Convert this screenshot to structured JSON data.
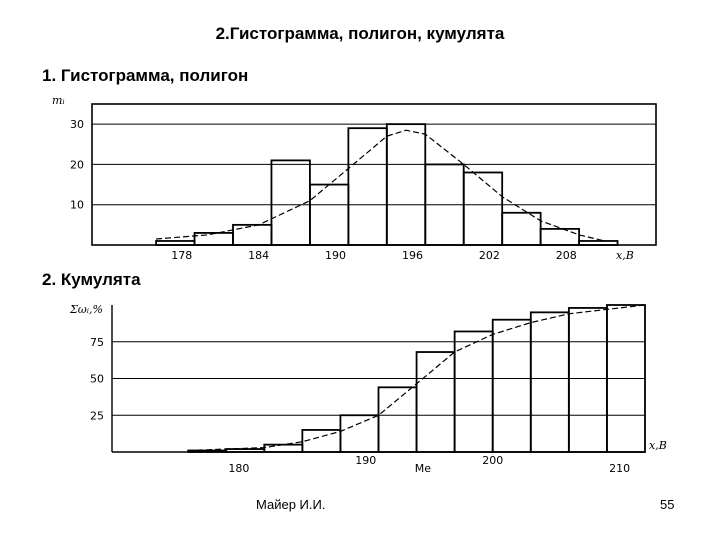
{
  "slide": {
    "title": "2.Гистограмма, полигон, кумулята",
    "section1_heading": "1. Гистограмма, полигон",
    "section2_heading": "2. Кумулята",
    "author": "Майер И.И.",
    "page_number": "55"
  },
  "chart_data": [
    {
      "type": "bar",
      "title": "",
      "ylabel": "mᵢ",
      "xlabel": "x,B",
      "ylim": [
        0,
        35
      ],
      "y_ticks": [
        10,
        20,
        30
      ],
      "x_tick_labels": [
        "178",
        "184",
        "190",
        "196",
        "202",
        "208"
      ],
      "x_tick_values": [
        178,
        184,
        190,
        196,
        202,
        208
      ],
      "bin_width": 3,
      "bin_starts": [
        176,
        179,
        182,
        185,
        188,
        191,
        194,
        197,
        200,
        203,
        206,
        209
      ],
      "values": [
        1,
        3,
        5,
        21,
        15,
        29,
        30,
        20,
        18,
        8,
        4,
        1
      ],
      "polygon_curve": {
        "x": [
          176,
          180,
          184,
          188,
          191,
          194,
          195.5,
          197,
          200,
          203,
          206,
          209,
          211
        ],
        "y": [
          1.5,
          2.5,
          5,
          11,
          19,
          27,
          28.5,
          27.5,
          20,
          12,
          6,
          2.5,
          1
        ]
      },
      "grid": "horizontal"
    },
    {
      "type": "bar",
      "title": "",
      "ylabel": "Σωᵢ,%",
      "xlabel": "x,B",
      "ylim": [
        0,
        100
      ],
      "y_ticks": [
        25,
        50,
        75
      ],
      "x_tick_labels": [
        "180",
        "190",
        "Me",
        "200",
        "210"
      ],
      "x_tick_values": [
        180,
        190,
        194.5,
        200,
        210
      ],
      "bin_width": 3,
      "bin_starts": [
        176,
        179,
        182,
        185,
        188,
        191,
        194,
        197,
        200,
        203,
        206,
        209
      ],
      "values": [
        1,
        2,
        5,
        15,
        25,
        44,
        68,
        82,
        90,
        95,
        98,
        100
      ],
      "cumulative_curve": {
        "x": [
          176,
          182,
          185,
          188,
          191,
          194.5,
          197,
          200,
          203,
          206,
          212
        ],
        "y": [
          1,
          3,
          7,
          14,
          25,
          50,
          68,
          80,
          88,
          94,
          100
        ]
      },
      "grid": "horizontal"
    }
  ]
}
